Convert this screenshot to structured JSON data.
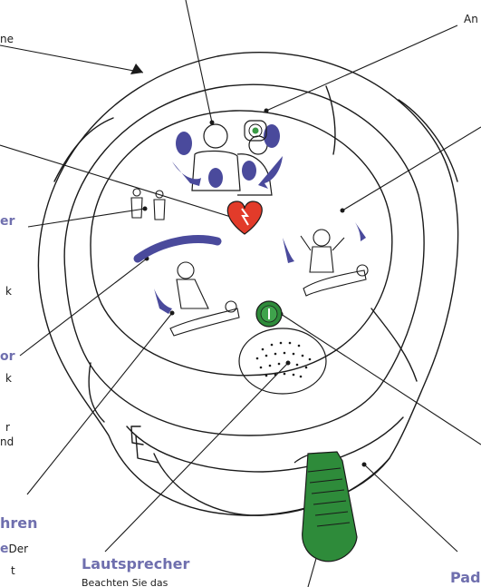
{
  "labels": {
    "top_right": "An",
    "top_left_fragment": "ne",
    "blue_left_1": "er",
    "left_k_1": "k",
    "blue_left_2": "or",
    "left_k_2": "k",
    "left_r": "r",
    "left_nd": "nd",
    "blue_bottom_left": "hren",
    "blue_bottom_left_2": "e",
    "bottom_left_der": "Der",
    "bottom_left_t": "t",
    "lautsprecher_title": "Lautsprecher",
    "lautsprecher_body": "Beachten Sie das",
    "pad_title": "Pad-"
  },
  "colors": {
    "label_blue": "#6f6fae",
    "outline": "#1a1a1a",
    "pad_purple": "#4a4a9c",
    "heart_red": "#e23b2a",
    "button_green": "#2e8b3a",
    "connector_green": "#3a9a45"
  },
  "icons": {
    "status_indicator": "status-indicator-icon",
    "pads_placement": "pad-placement-icon",
    "adult_child": "adult-child-icon",
    "shock_heart": "shock-heart-icon",
    "cpr": "cpr-icon",
    "do_not_touch": "do-not-touch-icon",
    "on_off_button": "power-button-icon",
    "speaker": "speaker-grille-icon",
    "pad_connector": "pad-connector-icon"
  }
}
